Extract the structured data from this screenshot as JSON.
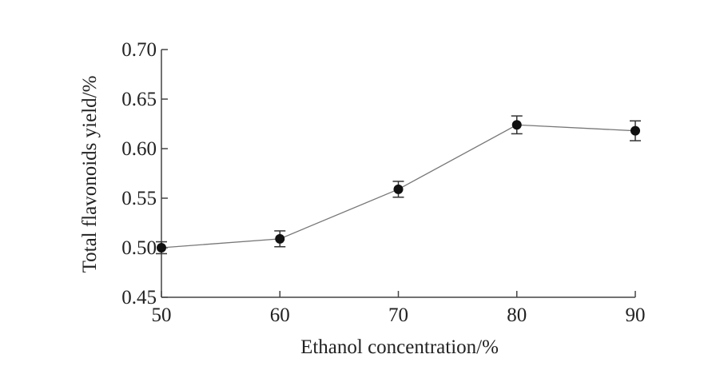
{
  "chart_data": {
    "type": "line",
    "title": "",
    "xlabel": "Ethanol concentration/%",
    "ylabel": "Total flavonoids yield/%",
    "x": [
      50,
      60,
      70,
      80,
      90
    ],
    "series": [
      {
        "name": "Total flavonoids yield",
        "values": [
          0.5,
          0.509,
          0.559,
          0.624,
          0.618
        ],
        "errors": [
          0.006,
          0.008,
          0.008,
          0.009,
          0.01
        ]
      }
    ],
    "xlim": [
      50,
      90
    ],
    "ylim": [
      0.45,
      0.7
    ],
    "xticks": [
      "50",
      "60",
      "70",
      "80",
      "90"
    ],
    "yticks": [
      "0.45",
      "0.50",
      "0.55",
      "0.60",
      "0.65",
      "0.70"
    ],
    "grid": false,
    "colors": {
      "line": "#777777",
      "marker": "#111111",
      "axis": "#444444"
    }
  }
}
